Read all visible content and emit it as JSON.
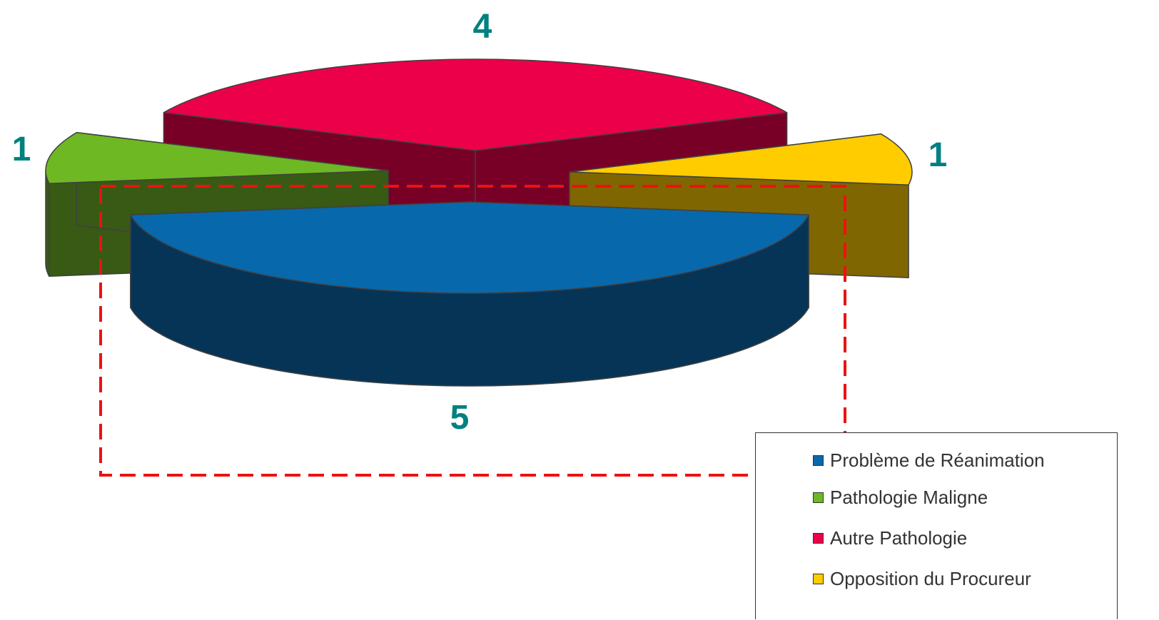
{
  "chart_data": {
    "type": "pie",
    "title": "",
    "slices": [
      {
        "label": "Problème de Réanimation",
        "value": 5,
        "display_value": "5",
        "color": "#0868AC",
        "side_color": "#063457"
      },
      {
        "label": "Pathologie Maligne",
        "value": 1,
        "display_value": "1",
        "color": "#6EB823",
        "side_color": "#385A14"
      },
      {
        "label": "Autre Pathologie",
        "value": 4,
        "display_value": "4",
        "color": "#EC004A",
        "side_color": "#780026"
      },
      {
        "label": "Opposition du Procureur",
        "value": 1,
        "display_value": "1",
        "color": "#FFCC00",
        "side_color": "#806600"
      }
    ],
    "three_d": true,
    "exploded": true,
    "legend": "bottom-right",
    "data_label_color": "#008080",
    "highlight": {
      "style": "dashed",
      "color": "#EE1111",
      "target": "Problème de Réanimation"
    }
  }
}
